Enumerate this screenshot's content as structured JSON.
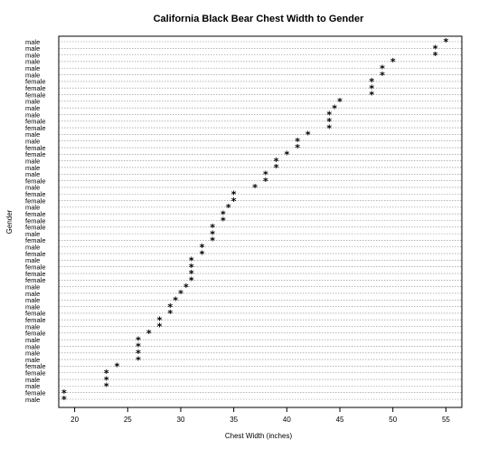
{
  "chart_data": {
    "type": "dotchart",
    "title": "California Black Bear Chest Width to Gender",
    "xlabel": "Chest Width (inches)",
    "ylabel": "Gender",
    "xlim": [
      18.5,
      56.5
    ],
    "x_ticks": [
      20,
      25,
      30,
      35,
      40,
      45,
      50,
      55
    ],
    "grid": "dotted horizontal lines per row",
    "marker": "*",
    "rows": [
      {
        "label": "male",
        "value": 19
      },
      {
        "label": "female",
        "value": 19
      },
      {
        "label": "male",
        "value": 23
      },
      {
        "label": "male",
        "value": 23
      },
      {
        "label": "female",
        "value": 23
      },
      {
        "label": "female",
        "value": 24
      },
      {
        "label": "male",
        "value": 26
      },
      {
        "label": "male",
        "value": 26
      },
      {
        "label": "male",
        "value": 26
      },
      {
        "label": "male",
        "value": 26
      },
      {
        "label": "female",
        "value": 27
      },
      {
        "label": "male",
        "value": 28
      },
      {
        "label": "female",
        "value": 28
      },
      {
        "label": "female",
        "value": 29
      },
      {
        "label": "male",
        "value": 29
      },
      {
        "label": "male",
        "value": 29.5
      },
      {
        "label": "male",
        "value": 30
      },
      {
        "label": "male",
        "value": 30.5
      },
      {
        "label": "female",
        "value": 31
      },
      {
        "label": "female",
        "value": 31
      },
      {
        "label": "female",
        "value": 31
      },
      {
        "label": "male",
        "value": 31
      },
      {
        "label": "female",
        "value": 32
      },
      {
        "label": "male",
        "value": 32
      },
      {
        "label": "female",
        "value": 33
      },
      {
        "label": "male",
        "value": 33
      },
      {
        "label": "female",
        "value": 33
      },
      {
        "label": "female",
        "value": 34
      },
      {
        "label": "female",
        "value": 34
      },
      {
        "label": "male",
        "value": 34.5
      },
      {
        "label": "female",
        "value": 35
      },
      {
        "label": "female",
        "value": 35
      },
      {
        "label": "male",
        "value": 37
      },
      {
        "label": "female",
        "value": 38
      },
      {
        "label": "male",
        "value": 38
      },
      {
        "label": "male",
        "value": 39
      },
      {
        "label": "male",
        "value": 39
      },
      {
        "label": "female",
        "value": 40
      },
      {
        "label": "female",
        "value": 41
      },
      {
        "label": "male",
        "value": 41
      },
      {
        "label": "male",
        "value": 42
      },
      {
        "label": "female",
        "value": 44
      },
      {
        "label": "female",
        "value": 44
      },
      {
        "label": "male",
        "value": 44
      },
      {
        "label": "male",
        "value": 44.5
      },
      {
        "label": "male",
        "value": 45
      },
      {
        "label": "female",
        "value": 48
      },
      {
        "label": "female",
        "value": 48
      },
      {
        "label": "female",
        "value": 48
      },
      {
        "label": "male",
        "value": 49
      },
      {
        "label": "male",
        "value": 49
      },
      {
        "label": "male",
        "value": 50
      },
      {
        "label": "male",
        "value": 54
      },
      {
        "label": "male",
        "value": 54
      },
      {
        "label": "male",
        "value": 55
      }
    ]
  }
}
